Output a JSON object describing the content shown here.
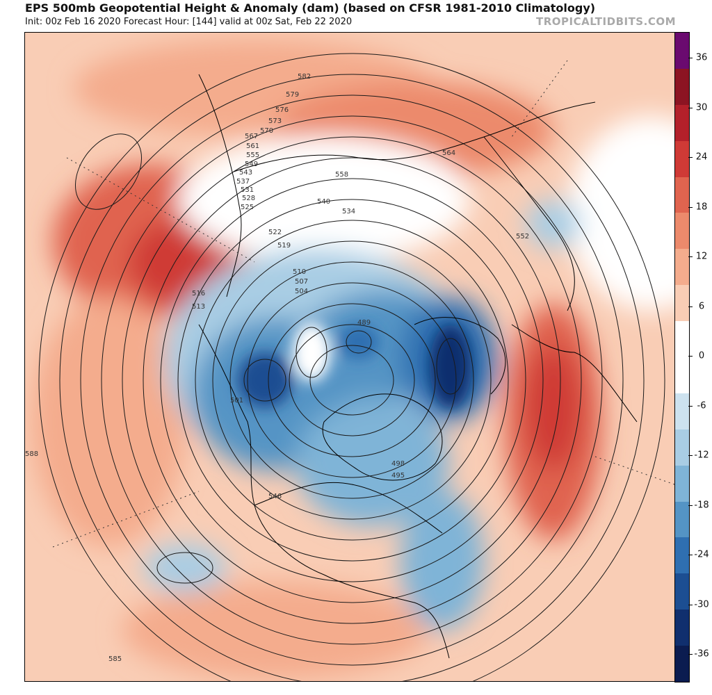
{
  "header": {
    "title": "EPS 500mb Geopotential Height & Anomaly (dam) (based on CFSR 1981-2010 Climatology)",
    "subtitle": "Init: 00z Feb 16 2020   Forecast Hour: [144]   valid at 00z Sat, Feb 22 2020",
    "brand": "TROPICALTIDBITS.COM"
  },
  "colorbar": {
    "segments": [
      {
        "color": "#6a0a6f"
      },
      {
        "color": "#8c1422"
      },
      {
        "color": "#b3202a"
      },
      {
        "color": "#cf3a36"
      },
      {
        "color": "#e0644f"
      },
      {
        "color": "#ec8a6c"
      },
      {
        "color": "#f4ac8d"
      },
      {
        "color": "#f9cdb5"
      },
      {
        "color": "#ffffff"
      },
      {
        "color": "#ffffff"
      },
      {
        "color": "#cde2ef"
      },
      {
        "color": "#a9cde4"
      },
      {
        "color": "#7fb4d7"
      },
      {
        "color": "#5494c5"
      },
      {
        "color": "#2f6fb1"
      },
      {
        "color": "#1c4e92"
      },
      {
        "color": "#102f6e"
      },
      {
        "color": "#0b1c50"
      }
    ],
    "labels": [
      "36",
      "30",
      "24",
      "18",
      "12",
      "6",
      "0",
      "-6",
      "-12",
      "-18",
      "-24",
      "-30",
      "-36"
    ]
  },
  "map": {
    "contour_labels": [
      "582",
      "579",
      "576",
      "573",
      "570",
      "567",
      "561",
      "555",
      "549",
      "543",
      "537",
      "531",
      "528",
      "525",
      "522",
      "519",
      "516",
      "513",
      "510",
      "507",
      "504",
      "501",
      "498",
      "495",
      "489",
      "558",
      "552",
      "534",
      "540",
      "546",
      "564",
      "585",
      "588"
    ]
  }
}
